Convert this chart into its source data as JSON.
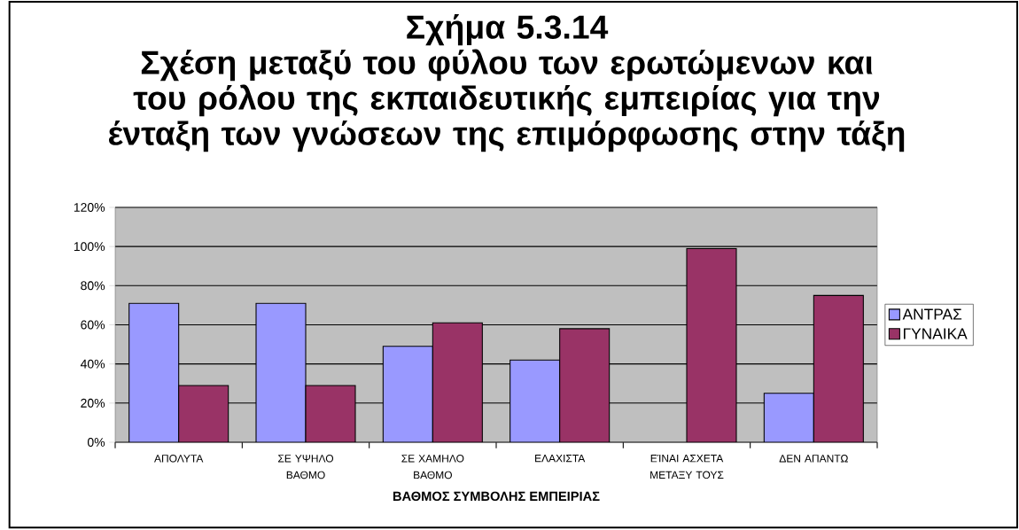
{
  "chart_data": {
    "type": "bar",
    "title": "Σχήμα 5.3.14",
    "subtitle": "Σχέση μεταξύ του φύλου των ερωτώμενων και του ρόλου της εκπαιδευτικής εμπειρίας για την ένταξη των γνώσεων της επιμόρφωσης στην τάξη",
    "xlabel": "ΒΑΘΜΟΣ ΣΥΜΒΟΛΗΣ ΕΜΠΕΙΡΙΑΣ",
    "categories": [
      "ΑΠΟΛΥΤΑ",
      "ΣΕ ΥΨΗΛΟ ΒΑΘΜΟ",
      "ΣΕ ΧΑΜΗΛΟ ΒΑΘΜΟ",
      "ΕΛΑΧΙΣΤΑ",
      "ΕΊΝΑΙ ΑΣΧΕΤΑ ΜΕΤΑΞΥ ΤΟΥΣ",
      "ΔΕΝ ΑΠΑΝΤΩ"
    ],
    "series": [
      {
        "name": "ΑΝΤΡΑΣ",
        "color": "#9999ff",
        "values": [
          71,
          71,
          49,
          42,
          null,
          25
        ]
      },
      {
        "name": "ΓΥΝΑΙΚΑ",
        "color": "#993366",
        "values": [
          29,
          29,
          61,
          58,
          99,
          75
        ]
      }
    ],
    "ylim": [
      0,
      120
    ],
    "yticks": [
      {
        "value": 0,
        "label": "0%"
      },
      {
        "value": 20,
        "label": "20%"
      },
      {
        "value": 40,
        "label": "40%"
      },
      {
        "value": 60,
        "label": "60%"
      },
      {
        "value": 80,
        "label": "80%"
      },
      {
        "value": 100,
        "label": "100%"
      },
      {
        "value": 120,
        "label": "120%"
      }
    ],
    "grid": "y",
    "legend": "right"
  }
}
